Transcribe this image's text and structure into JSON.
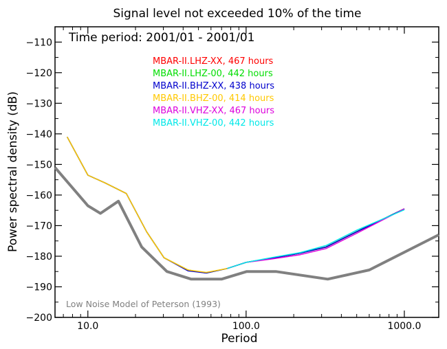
{
  "chart_data": {
    "type": "line",
    "title": "Signal level not exceeded 10% of the time",
    "subtitle": "Time period: 2001/01 - 2001/01",
    "xlabel": "Period",
    "ylabel": "Power spectral density (dB)",
    "x_scale": "log",
    "xlim": [
      6.2,
      1650
    ],
    "ylim": [
      -200,
      -105
    ],
    "x_ticks": [
      {
        "value": 10,
        "label": "10.0"
      },
      {
        "value": 100,
        "label": "100.0"
      },
      {
        "value": 1000,
        "label": "1000.0"
      }
    ],
    "y_ticks": [
      {
        "value": -110,
        "label": "−110"
      },
      {
        "value": -120,
        "label": "−120"
      },
      {
        "value": -130,
        "label": "−130"
      },
      {
        "value": -140,
        "label": "−140"
      },
      {
        "value": -150,
        "label": "−150"
      },
      {
        "value": -160,
        "label": "−160"
      },
      {
        "value": -170,
        "label": "−170"
      },
      {
        "value": -180,
        "label": "−180"
      },
      {
        "value": -190,
        "label": "−190"
      },
      {
        "value": -200,
        "label": "−200"
      }
    ],
    "legend_position": "top-center",
    "series": [
      {
        "name": "MBAR-II.LHZ-XX, 467 hours",
        "color": "#ff0000",
        "x": [
          7.4,
          10.0,
          12.8,
          17.5,
          23.5,
          30.3,
          43,
          56,
          76,
          100,
          150,
          220,
          320,
          500,
          1000
        ],
        "y": [
          -141,
          -153.5,
          -156,
          -159.5,
          -172,
          -180.5,
          -184.5,
          -185.5,
          -184,
          -182,
          -180.5,
          -179,
          -177,
          -172,
          -164.5
        ]
      },
      {
        "name": "MBAR-II.LHZ-00, 442 hours",
        "color": "#00dd00",
        "x": [
          7.4,
          10.0,
          12.8,
          17.5,
          23.5,
          30.3,
          43,
          56,
          76,
          100,
          150,
          220,
          320,
          500,
          1000
        ],
        "y": [
          -141,
          -153.5,
          -156,
          -159.5,
          -172,
          -180.5,
          -184.5,
          -185.5,
          -184,
          -182,
          -180.5,
          -179,
          -177,
          -172,
          -164.5
        ]
      },
      {
        "name": "MBAR-II.BHZ-XX, 438 hours",
        "color": "#0000cc",
        "x": [
          7.4,
          10.0,
          12.8,
          17.5,
          23.5,
          30.3,
          43,
          56,
          76,
          100,
          150,
          220,
          320,
          500,
          1000
        ],
        "y": [
          -141,
          -153.5,
          -156,
          -159.5,
          -172,
          -180.5,
          -184.8,
          -185.5,
          -184,
          -182,
          -180.5,
          -179,
          -177,
          -172,
          -164.5
        ]
      },
      {
        "name": "MBAR-II.BHZ-00, 414 hours",
        "color": "#ffc800",
        "x": [
          7.4,
          10.0,
          12.8,
          17.5,
          23.5,
          30.3,
          43,
          56,
          76
        ],
        "y": [
          -141,
          -153.5,
          -156,
          -159.5,
          -172,
          -180.5,
          -184.5,
          -185.3,
          -184
        ]
      },
      {
        "name": "MBAR-II.VHZ-XX, 467 hours",
        "color": "#dd00dd",
        "x": [
          76,
          100,
          150,
          220,
          320,
          500,
          1000
        ],
        "y": [
          -184,
          -182,
          -180.8,
          -179.5,
          -177.5,
          -172.5,
          -164.5
        ]
      },
      {
        "name": "MBAR-II.VHZ-00, 442 hours",
        "color": "#00e8e8",
        "x": [
          76,
          100,
          150,
          220,
          320,
          500,
          1000
        ],
        "y": [
          -184,
          -182,
          -180.3,
          -178.8,
          -176.5,
          -171.5,
          -164.8
        ]
      }
    ],
    "reference": {
      "name": "Low Noise Model of Peterson (1993)",
      "color": "#808080",
      "x": [
        6.2,
        10.0,
        12.0,
        15.6,
        21.9,
        31.6,
        45.0,
        70.0,
        101,
        154,
        328,
        600,
        1650
      ],
      "y": [
        -151,
        -163.5,
        -166,
        -162,
        -177,
        -185,
        -187.5,
        -187.5,
        -185,
        -185,
        -187.5,
        -184.5,
        -173
      ]
    }
  }
}
